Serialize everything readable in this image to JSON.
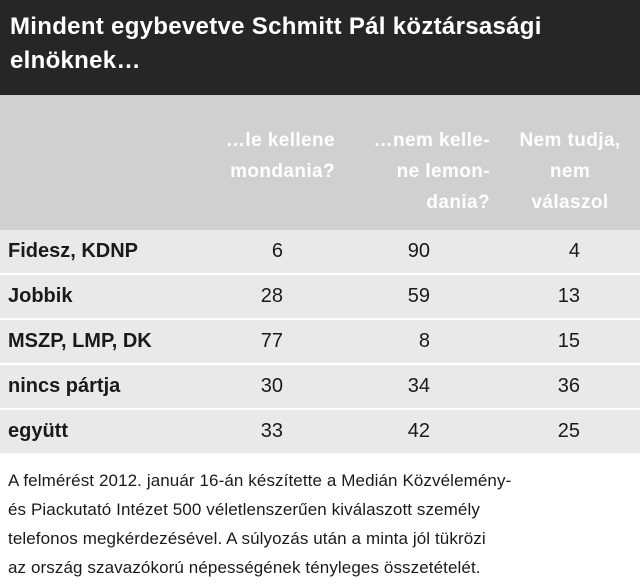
{
  "header": {
    "title_lines": [
      "Mindent egybevetve Schmitt Pál köztársasági",
      "elnöknek…"
    ]
  },
  "table": {
    "columns": [
      [
        "…le kellene",
        "mondania?"
      ],
      [
        "…nem kelle-",
        "ne lemon-",
        "dania?"
      ],
      [
        "Nem tudja,",
        "nem",
        "válaszol"
      ]
    ],
    "rows": [
      [
        "Fidesz, KDNP",
        6,
        90,
        4
      ],
      [
        "Jobbik",
        28,
        59,
        13
      ],
      [
        "MSZP, LMP, DK",
        77,
        8,
        15
      ],
      [
        "nincs pártja",
        30,
        34,
        36
      ],
      [
        "együtt",
        33,
        42,
        25
      ]
    ]
  },
  "footnote_lines": [
    "A felmérést 2012. január 16-án készítette a Medián Közvélemény-",
    "és Piackutató Intézet 500 véletlenszerűen kiválaszott személy",
    "telefonos megkérdezésével. A súlyozás után a minta jól tükrözi",
    "az ország szavazókorú népességének tényleges összetételét."
  ]
}
